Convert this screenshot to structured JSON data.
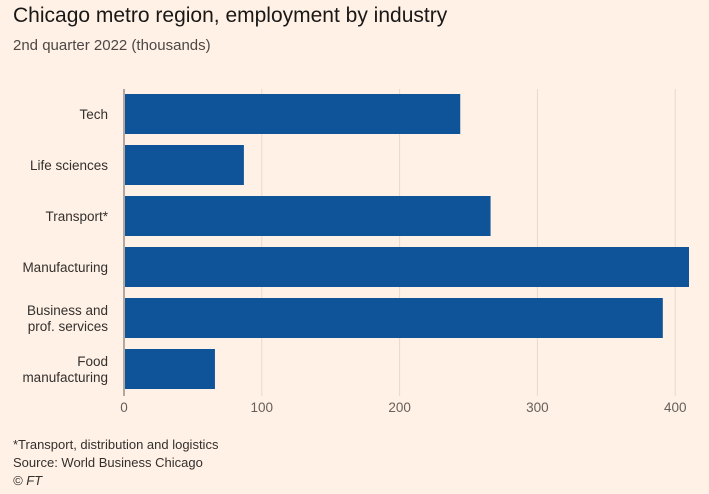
{
  "header": {
    "title": "Chicago metro region, employment by industry",
    "subtitle": "2nd quarter 2022 (thousands)"
  },
  "footer": {
    "note": "*Transport, distribution and logistics",
    "source": "Source: World Business Chicago",
    "credit": "© FT"
  },
  "colors": {
    "bar": "#0f5499",
    "grid": "#e6d9ce",
    "axis": "#66605c",
    "background": "#fff1e5"
  },
  "chart_data": {
    "type": "bar",
    "orientation": "horizontal",
    "title": "Chicago metro region, employment by industry",
    "subtitle": "2nd quarter 2022 (thousands)",
    "categories": [
      [
        "Tech"
      ],
      [
        "Life sciences"
      ],
      [
        "Transport*"
      ],
      [
        "Manufacturing"
      ],
      [
        "Business and",
        "prof. services"
      ],
      [
        "Food",
        "manufacturing"
      ]
    ],
    "values": [
      244,
      87,
      266,
      410,
      391,
      66
    ],
    "xlim": [
      0,
      410
    ],
    "xticks": [
      0,
      100,
      200,
      300,
      400
    ],
    "grid": true,
    "legend": "none"
  }
}
